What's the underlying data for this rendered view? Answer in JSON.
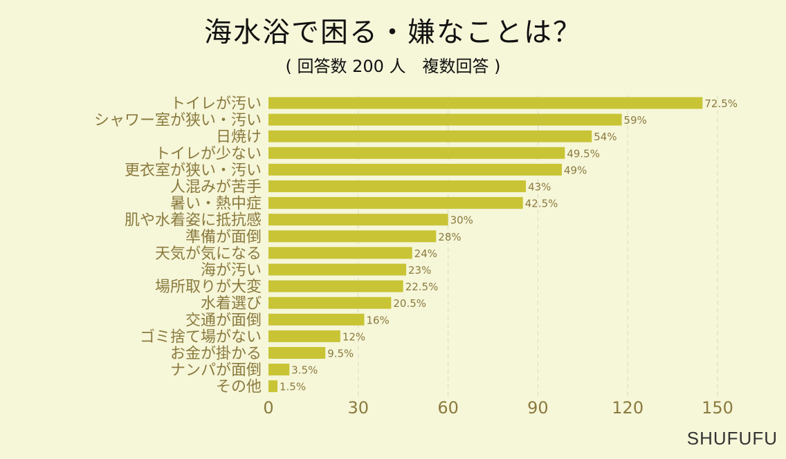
{
  "header": {
    "title": "海水浴で困る・嫌なことは？",
    "subtitle": "( 回答数 200 人　複数回答 )"
  },
  "brand": "SHUFUFU",
  "colors": {
    "background": "#f6f6d9",
    "bar": "#c8c435",
    "label": "#8a7a3e"
  },
  "chart_data": {
    "type": "bar",
    "orientation": "horizontal",
    "title": "海水浴で困る・嫌なことは？",
    "subtitle": "( 回答数 200 人　複数回答 )",
    "categories": [
      "トイレが汚い",
      "シャワー室が狭い・汚い",
      "日焼け",
      "トイレが少ない",
      "更衣室が狭い・汚い",
      "人混みが苦手",
      "暑い・熱中症",
      "肌や水着姿に抵抗感",
      "準備が面倒",
      "天気が気になる",
      "海が汚い",
      "場所取りが大変",
      "水着選び",
      "交通が面倒",
      "ゴミ捨て場がない",
      "お金が掛かる",
      "ナンパが面倒",
      "その他"
    ],
    "values": [
      145,
      118,
      108,
      99,
      98,
      86,
      85,
      60,
      56,
      48,
      46,
      45,
      41,
      32,
      24,
      19,
      7,
      3
    ],
    "value_labels": [
      "72.5%",
      "59%",
      "54%",
      "49.5%",
      "49%",
      "43%",
      "42.5%",
      "30%",
      "28%",
      "24%",
      "23%",
      "22.5%",
      "20.5%",
      "16%",
      "12%",
      "9.5%",
      "3.5%",
      "1.5%"
    ],
    "xlim": [
      0,
      150
    ],
    "xticks": [
      "0",
      "30",
      "60",
      "90",
      "120",
      "150"
    ],
    "grid": true
  }
}
